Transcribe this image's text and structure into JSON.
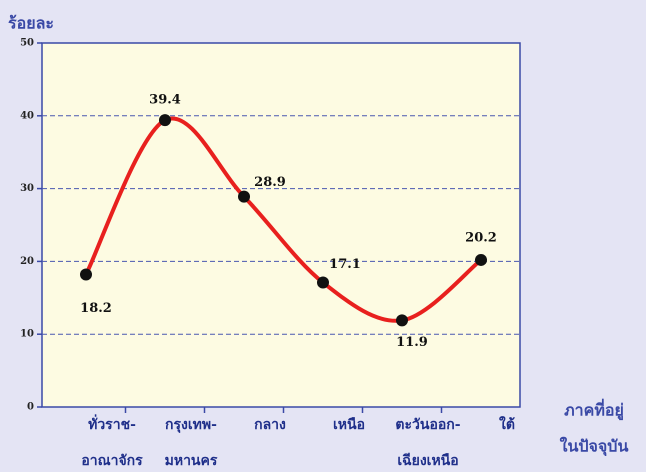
{
  "chart_data": {
    "type": "line",
    "ylabel": "ร้อยละ",
    "xlabel": [
      "ภาคที่อยู่",
      "ในปัจจุบัน"
    ],
    "categories": [
      [
        "ทั่วราช-",
        "อาณาจักร"
      ],
      [
        "กรุงเทพ-",
        "มหานคร"
      ],
      [
        "กลาง"
      ],
      [
        "เหนือ"
      ],
      [
        "ตะวันออก-",
        "เฉียงเหนือ"
      ],
      [
        "ใต้"
      ]
    ],
    "values": [
      18.2,
      39.4,
      28.9,
      17.1,
      11.9,
      20.2
    ],
    "color": "#e8201e",
    "ylim": [
      0,
      50
    ],
    "yticks": [
      0,
      10,
      20,
      30,
      40,
      50
    ],
    "grid": true
  }
}
